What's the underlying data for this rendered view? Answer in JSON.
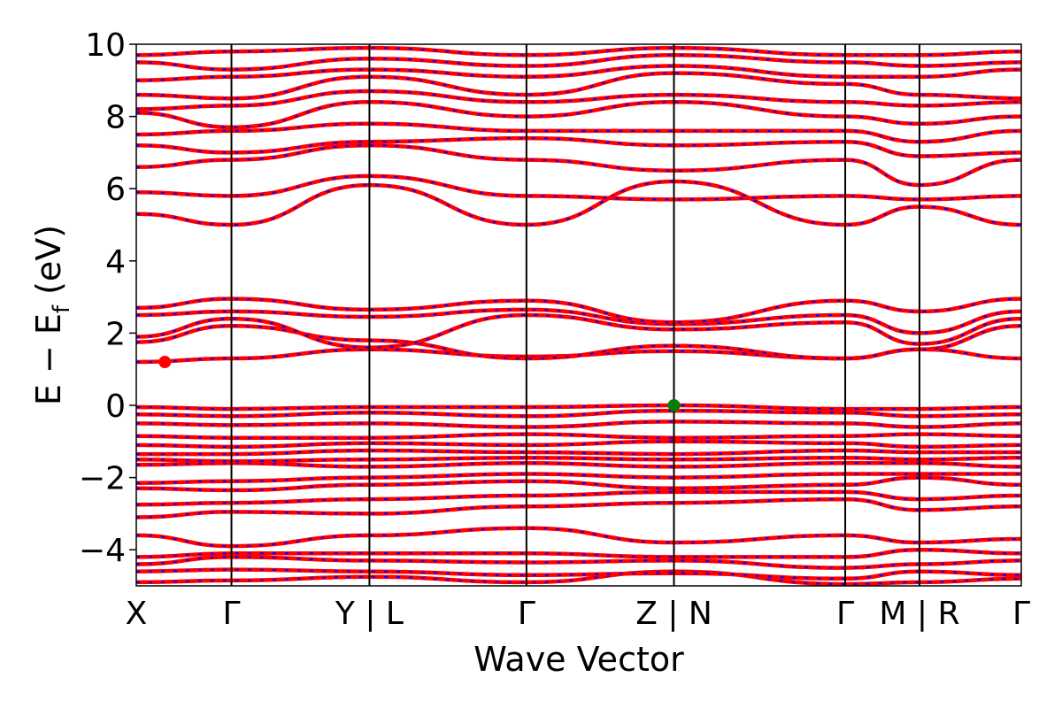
{
  "chart_data": {
    "type": "line",
    "title": "",
    "xlabel": "Wave Vector",
    "ylabel_parts": {
      "main": "E − E",
      "sub": "f",
      "unit": " (eV)"
    },
    "ylim": [
      -5,
      10
    ],
    "yticks": [
      {
        "value": -4,
        "label": "−4"
      },
      {
        "value": -2,
        "label": "−2"
      },
      {
        "value": 0,
        "label": "0"
      },
      {
        "value": 2,
        "label": "2"
      },
      {
        "value": 4,
        "label": "4"
      },
      {
        "value": 6,
        "label": "6"
      },
      {
        "value": 8,
        "label": "8"
      },
      {
        "value": 10,
        "label": "10"
      }
    ],
    "grid": false,
    "legend": "none",
    "kpath": {
      "segment_lengths": [
        1.0,
        1.45,
        1.65,
        1.55,
        1.8,
        0.78,
        1.07
      ],
      "labels": [
        "X",
        "Γ",
        "Y | L",
        "Γ",
        "Z | N",
        "Γ",
        "M | R",
        "Γ"
      ]
    },
    "series": [
      {
        "color": "#ff0000",
        "style": "solid"
      },
      {
        "color": "#0000ff",
        "style": "dashed"
      }
    ],
    "bands": [
      [
        -4.9,
        -4.85,
        -4.75,
        -4.9,
        -4.6,
        -4.95,
        -4.9,
        -4.8
      ],
      [
        -4.6,
        -4.55,
        -4.6,
        -4.7,
        -4.65,
        -4.8,
        -4.6,
        -4.7
      ],
      [
        -4.4,
        -4.2,
        -4.3,
        -4.35,
        -4.3,
        -4.5,
        -4.4,
        -4.3
      ],
      [
        -4.2,
        -4.1,
        -4.1,
        -4.1,
        -4.2,
        -4.2,
        -4.0,
        -4.1
      ],
      [
        -3.6,
        -3.9,
        -3.6,
        -3.4,
        -3.8,
        -3.6,
        -3.8,
        -3.7
      ],
      [
        -3.1,
        -2.95,
        -3.0,
        -2.8,
        -2.7,
        -2.6,
        -2.9,
        -2.8
      ],
      [
        -2.75,
        -2.7,
        -2.6,
        -2.5,
        -2.4,
        -2.4,
        -2.6,
        -2.5
      ],
      [
        -2.3,
        -2.35,
        -2.2,
        -2.1,
        -2.3,
        -2.2,
        -2.0,
        -2.2
      ],
      [
        -2.15,
        -2.1,
        -2.0,
        -1.9,
        -2.0,
        -1.9,
        -1.9,
        -1.9
      ],
      [
        -1.65,
        -1.6,
        -1.7,
        -1.6,
        -1.7,
        -1.6,
        -1.6,
        -1.7
      ],
      [
        -1.5,
        -1.55,
        -1.5,
        -1.45,
        -1.5,
        -1.45,
        -1.5,
        -1.45
      ],
      [
        -1.35,
        -1.35,
        -1.25,
        -1.3,
        -1.35,
        -1.25,
        -1.3,
        -1.3
      ],
      [
        -1.1,
        -1.15,
        -1.05,
        -1.1,
        -1.0,
        -1.05,
        -1.15,
        -1.1
      ],
      [
        -0.85,
        -0.9,
        -0.9,
        -0.8,
        -0.9,
        -0.85,
        -0.8,
        -0.85
      ],
      [
        -0.5,
        -0.55,
        -0.5,
        -0.6,
        -0.45,
        -0.5,
        -0.6,
        -0.5
      ],
      [
        -0.25,
        -0.3,
        -0.2,
        -0.3,
        -0.15,
        -0.2,
        -0.3,
        -0.25
      ],
      [
        -0.05,
        -0.1,
        -0.05,
        -0.05,
        0.0,
        -0.1,
        -0.1,
        -0.05
      ],
      [
        1.2,
        1.3,
        1.55,
        1.35,
        1.5,
        1.3,
        1.55,
        1.3
      ],
      [
        1.75,
        2.2,
        1.8,
        1.3,
        1.65,
        1.3,
        1.55,
        2.2
      ],
      [
        1.9,
        2.4,
        1.6,
        2.5,
        2.1,
        2.3,
        1.7,
        2.4
      ],
      [
        2.5,
        2.6,
        2.45,
        2.65,
        2.25,
        2.5,
        2.0,
        2.6
      ],
      [
        2.7,
        2.95,
        2.65,
        2.9,
        2.3,
        2.9,
        2.6,
        2.95
      ],
      [
        5.3,
        5.0,
        6.1,
        5.0,
        6.2,
        5.0,
        5.5,
        5.0
      ],
      [
        5.9,
        5.8,
        6.35,
        5.8,
        5.7,
        5.8,
        5.7,
        5.8
      ],
      [
        6.6,
        6.8,
        7.2,
        6.8,
        6.5,
        6.8,
        6.1,
        6.8
      ],
      [
        7.2,
        7.0,
        7.3,
        7.4,
        7.2,
        7.3,
        6.9,
        7.0
      ],
      [
        7.5,
        7.6,
        7.8,
        7.6,
        7.6,
        7.6,
        7.3,
        7.6
      ],
      [
        8.1,
        7.7,
        8.4,
        8.0,
        8.4,
        8.0,
        7.8,
        8.0
      ],
      [
        8.2,
        8.3,
        8.7,
        8.4,
        8.6,
        8.4,
        8.3,
        8.4
      ],
      [
        8.6,
        8.5,
        9.1,
        8.6,
        9.2,
        8.9,
        8.6,
        8.5
      ],
      [
        9.0,
        9.1,
        9.3,
        9.1,
        9.4,
        9.1,
        9.1,
        9.3
      ],
      [
        9.5,
        9.3,
        9.6,
        9.4,
        9.7,
        9.5,
        9.4,
        9.5
      ],
      [
        9.7,
        9.8,
        9.9,
        9.7,
        9.9,
        9.7,
        9.7,
        9.8
      ]
    ],
    "markers": [
      {
        "name": "conduction-band-minimum",
        "x": 0.3,
        "y": 1.2,
        "color": "#ff0000"
      },
      {
        "name": "valence-band-maximum",
        "x": 5.65,
        "y": 0.0,
        "color": "#008000"
      }
    ]
  }
}
